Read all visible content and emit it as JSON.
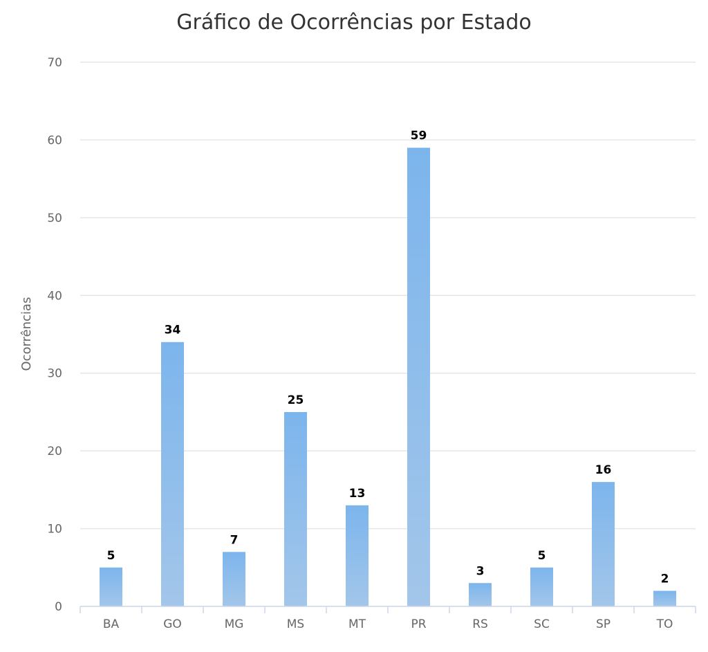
{
  "chart_data": {
    "type": "bar",
    "title": "Gráfico de Ocorrências por Estado",
    "xlabel": "",
    "ylabel": "Ocorrências",
    "categories": [
      "BA",
      "GO",
      "MG",
      "MS",
      "MT",
      "PR",
      "RS",
      "SC",
      "SP",
      "TO"
    ],
    "values": [
      5,
      34,
      7,
      25,
      13,
      59,
      3,
      5,
      16,
      2
    ],
    "ylim": [
      0,
      70
    ],
    "yticks": [
      0,
      10,
      20,
      30,
      40,
      50,
      60,
      70
    ],
    "grid": true,
    "legend": false,
    "data_labels": true,
    "colors": {
      "bar_top": "#7cb5ec",
      "bar_bottom": "#a3c6ea",
      "grid": "#e6e6e6",
      "axis": "#ccd6eb"
    }
  }
}
